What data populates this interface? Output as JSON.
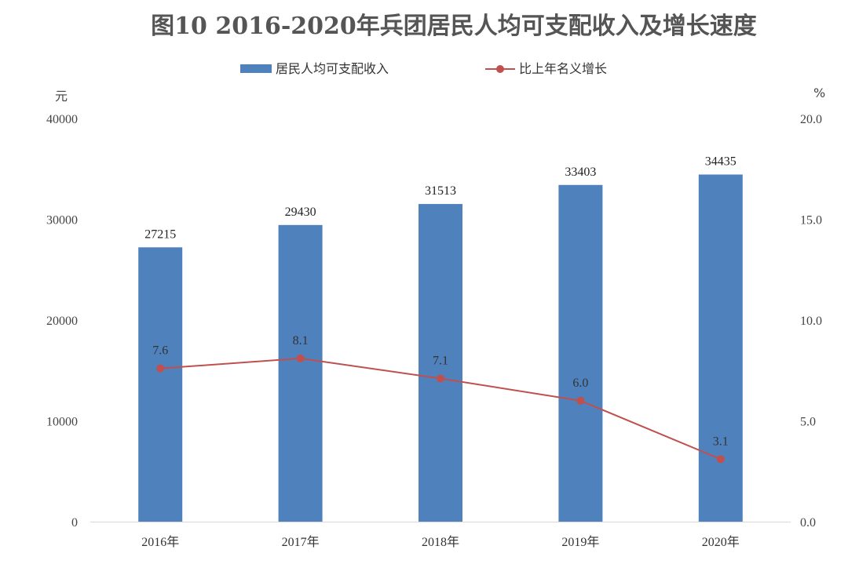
{
  "chart_data": {
    "type": "bar",
    "title": "图10 2016-2020年兵团居民人均可支配收入及增长速度",
    "categories": [
      "2016年",
      "2017年",
      "2018年",
      "2019年",
      "2020年"
    ],
    "series": [
      {
        "name": "居民人均可支配收入",
        "type": "bar",
        "axis": "left",
        "values": [
          27215,
          29430,
          31513,
          33403,
          34435
        ],
        "labels": [
          "27215",
          "29430",
          "31513",
          "33403",
          "34435"
        ],
        "color": "#4F81BD"
      },
      {
        "name": "比上年名义增长",
        "type": "line",
        "axis": "right",
        "values": [
          7.6,
          8.1,
          7.1,
          6.0,
          3.1
        ],
        "labels": [
          "7.6",
          "8.1",
          "7.1",
          "6.0",
          "3.1"
        ],
        "color": "#C0504D"
      }
    ],
    "left_axis": {
      "unit": "元",
      "ylim": [
        0,
        40000
      ],
      "ticks": [
        0,
        10000,
        20000,
        30000,
        40000
      ],
      "tick_labels": [
        "0",
        "10000",
        "20000",
        "30000",
        "40000"
      ]
    },
    "right_axis": {
      "unit": "%",
      "ylim": [
        0,
        20
      ],
      "ticks": [
        0,
        5,
        10,
        15,
        20
      ],
      "tick_labels": [
        "0.0",
        "5.0",
        "10.0",
        "15.0",
        "20.0"
      ]
    },
    "legend_position": "top-center",
    "grid": false
  }
}
